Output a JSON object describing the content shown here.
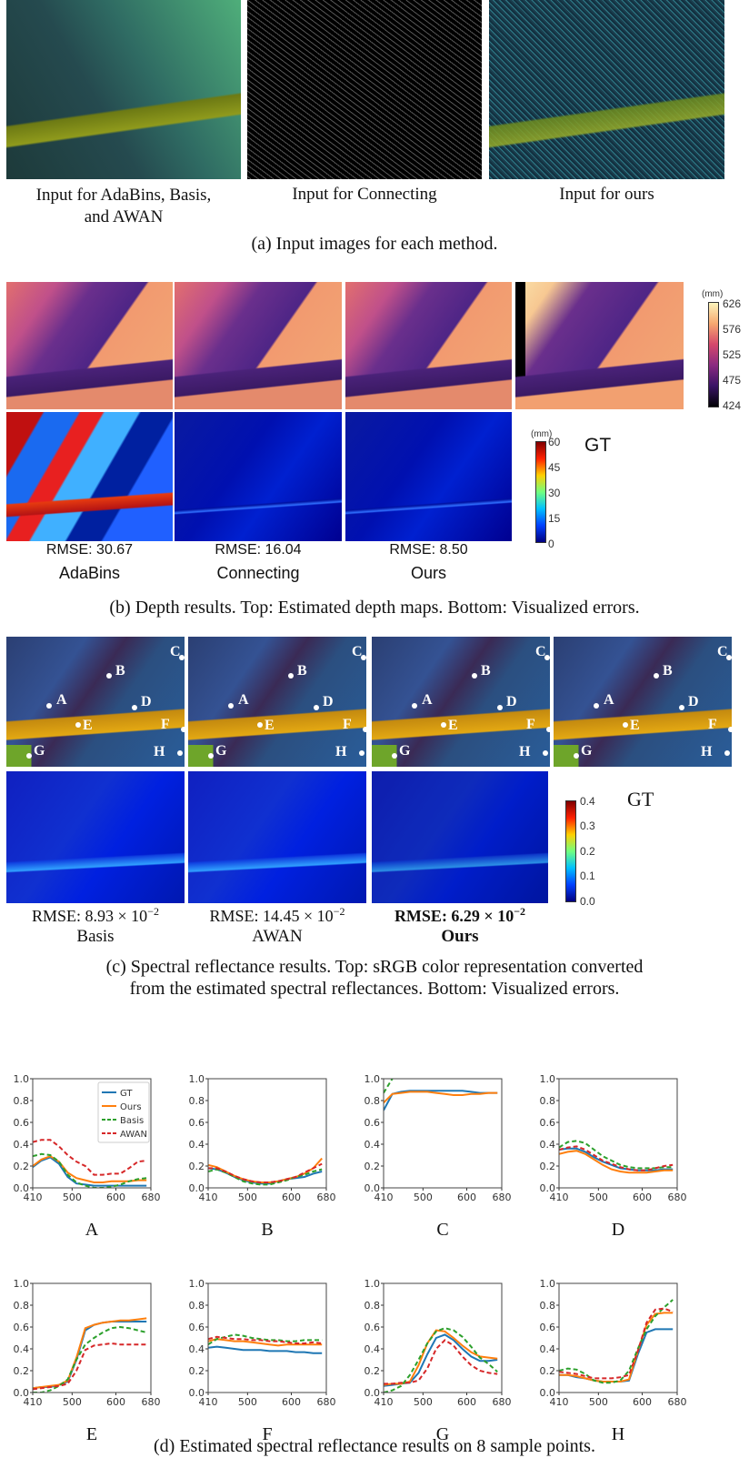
{
  "panel_a": {
    "labels": [
      [
        "Input for AdaBins, Basis,",
        "and AWAN"
      ],
      [
        "Input for Connecting"
      ],
      [
        "Input for ours"
      ]
    ],
    "caption": "(a) Input images for each method."
  },
  "panel_b": {
    "rmse": [
      "RMSE: 30.67",
      "RMSE: 16.04",
      "RMSE: 8.50"
    ],
    "methods": [
      "AdaBins",
      "Connecting",
      "Ours"
    ],
    "gt_label": "GT",
    "depth_colorbar": {
      "unit": "(mm)",
      "ticks": [
        "626",
        "576",
        "525",
        "475",
        "424"
      ],
      "colormap": "magma"
    },
    "error_colorbar": {
      "unit": "(mm)",
      "ticks": [
        "60",
        "45",
        "30",
        "15",
        "0"
      ],
      "colormap": "jet"
    },
    "caption": "(b) Depth results. Top: Estimated depth maps. Bottom: Visualized errors."
  },
  "panel_c": {
    "rmse": [
      {
        "prefix": "RMSE: 8.93 × 10",
        "exp": "−2"
      },
      {
        "prefix": "RMSE: 14.45 × 10",
        "exp": "−2"
      },
      {
        "prefix": "RMSE: 6.29 × 10",
        "exp": "−2"
      }
    ],
    "methods": [
      "Basis",
      "AWAN",
      "Ours"
    ],
    "gt_label": "GT",
    "points": [
      "A",
      "B",
      "C",
      "D",
      "E",
      "F",
      "G",
      "H"
    ],
    "error_colorbar": {
      "ticks": [
        "0.4",
        "0.3",
        "0.2",
        "0.1",
        "0.0"
      ],
      "colormap": "jet"
    },
    "caption": [
      "(c) Spectral reflectance results. Top: sRGB color representation converted",
      "from the estimated spectral reflectances. Bottom: Visualized errors."
    ]
  },
  "panel_d": {
    "caption": "(d) Estimated spectral reflectance results on 8 sample points."
  },
  "chart_data": {
    "type": "line",
    "xlim": [
      410,
      680
    ],
    "ylim": [
      0,
      1
    ],
    "xticks": [
      "410",
      "500",
      "600",
      "680"
    ],
    "yticks": [
      "0.0",
      "0.2",
      "0.4",
      "0.6",
      "0.8",
      "1.0"
    ],
    "legend": {
      "placement": "top-right",
      "entries": [
        "GT",
        "Ours",
        "Basis",
        "AWAN"
      ]
    },
    "series_styles": {
      "GT": {
        "color": "#1f77b4",
        "dash": "solid"
      },
      "Ours": {
        "color": "#ff7f0e",
        "dash": "solid"
      },
      "Basis": {
        "color": "#2ca02c",
        "dash": "dashed"
      },
      "AWAN": {
        "color": "#d62728",
        "dash": "dashed"
      }
    },
    "x": [
      410,
      430,
      450,
      470,
      490,
      510,
      530,
      550,
      570,
      590,
      610,
      630,
      650,
      670
    ],
    "charts": [
      {
        "title": "A",
        "series": {
          "GT": [
            0.19,
            0.25,
            0.28,
            0.22,
            0.1,
            0.04,
            0.03,
            0.02,
            0.02,
            0.02,
            0.02,
            0.02,
            0.02,
            0.02
          ],
          "Ours": [
            0.2,
            0.26,
            0.29,
            0.24,
            0.14,
            0.09,
            0.07,
            0.05,
            0.05,
            0.06,
            0.06,
            0.06,
            0.07,
            0.07
          ],
          "Basis": [
            0.29,
            0.31,
            0.3,
            0.24,
            0.12,
            0.05,
            0.02,
            0.0,
            0.0,
            0.01,
            0.03,
            0.06,
            0.08,
            0.09
          ],
          "AWAN": [
            0.42,
            0.44,
            0.44,
            0.38,
            0.3,
            0.24,
            0.2,
            0.12,
            0.12,
            0.13,
            0.13,
            0.18,
            0.24,
            0.25
          ]
        }
      },
      {
        "title": "B",
        "series": {
          "GT": [
            0.18,
            0.17,
            0.14,
            0.1,
            0.07,
            0.05,
            0.04,
            0.04,
            0.06,
            0.08,
            0.09,
            0.1,
            0.13,
            0.15
          ],
          "Ours": [
            0.21,
            0.19,
            0.15,
            0.11,
            0.08,
            0.06,
            0.05,
            0.05,
            0.06,
            0.08,
            0.1,
            0.13,
            0.18,
            0.27
          ],
          "Basis": [
            0.15,
            0.17,
            0.14,
            0.1,
            0.06,
            0.04,
            0.03,
            0.03,
            0.05,
            0.07,
            0.1,
            0.12,
            0.15,
            0.17
          ],
          "AWAN": [
            0.18,
            0.18,
            0.15,
            0.11,
            0.08,
            0.06,
            0.05,
            0.05,
            0.06,
            0.08,
            0.1,
            0.14,
            0.18,
            0.22
          ]
        }
      },
      {
        "title": "C",
        "series": {
          "GT": [
            0.71,
            0.86,
            0.88,
            0.89,
            0.89,
            0.89,
            0.89,
            0.89,
            0.89,
            0.89,
            0.88,
            0.87,
            0.87,
            0.87
          ],
          "Ours": [
            0.78,
            0.86,
            0.87,
            0.88,
            0.88,
            0.88,
            0.87,
            0.86,
            0.85,
            0.85,
            0.86,
            0.86,
            0.87,
            0.87
          ],
          "Basis": [
            0.87,
            1.0,
            null,
            null,
            null,
            null,
            null,
            null,
            null,
            null,
            null,
            null,
            null,
            null
          ],
          "AWAN": [
            null,
            null,
            null,
            null,
            null,
            null,
            null,
            null,
            null,
            null,
            null,
            null,
            null,
            null
          ]
        }
      },
      {
        "title": "D",
        "series": {
          "GT": [
            0.35,
            0.36,
            0.36,
            0.33,
            0.28,
            0.24,
            0.21,
            0.18,
            0.17,
            0.16,
            0.16,
            0.16,
            0.17,
            0.17
          ],
          "Ours": [
            0.31,
            0.33,
            0.34,
            0.31,
            0.26,
            0.21,
            0.17,
            0.15,
            0.14,
            0.14,
            0.14,
            0.15,
            0.16,
            0.16
          ],
          "Basis": [
            0.37,
            0.42,
            0.43,
            0.41,
            0.35,
            0.29,
            0.25,
            0.21,
            0.19,
            0.18,
            0.18,
            0.18,
            0.19,
            0.19
          ],
          "AWAN": [
            0.35,
            0.37,
            0.38,
            0.35,
            0.3,
            0.25,
            0.22,
            0.19,
            0.17,
            0.16,
            0.16,
            0.18,
            0.2,
            0.21
          ]
        }
      },
      {
        "title": "E",
        "series": {
          "GT": [
            0.04,
            0.05,
            0.05,
            0.07,
            0.1,
            0.3,
            0.57,
            0.62,
            0.64,
            0.65,
            0.65,
            0.65,
            0.65,
            0.65
          ],
          "Ours": [
            0.04,
            0.05,
            0.06,
            0.07,
            0.11,
            0.32,
            0.59,
            0.62,
            0.64,
            0.65,
            0.66,
            0.66,
            0.67,
            0.68
          ],
          "Basis": [
            0.0,
            0.0,
            0.02,
            0.06,
            0.12,
            0.3,
            0.44,
            0.5,
            0.55,
            0.59,
            0.6,
            0.59,
            0.57,
            0.55
          ],
          "AWAN": [
            0.03,
            0.04,
            0.05,
            0.06,
            0.08,
            0.2,
            0.39,
            0.43,
            0.44,
            0.45,
            0.44,
            0.44,
            0.44,
            0.44
          ]
        }
      },
      {
        "title": "F",
        "series": {
          "GT": [
            0.41,
            0.42,
            0.41,
            0.4,
            0.39,
            0.39,
            0.39,
            0.38,
            0.38,
            0.38,
            0.37,
            0.37,
            0.36,
            0.36
          ],
          "Ours": [
            0.47,
            0.49,
            0.48,
            0.47,
            0.47,
            0.46,
            0.45,
            0.44,
            0.43,
            0.44,
            0.44,
            0.44,
            0.44,
            0.44
          ],
          "Basis": [
            0.44,
            0.49,
            0.51,
            0.53,
            0.52,
            0.5,
            0.49,
            0.48,
            0.48,
            0.47,
            0.47,
            0.48,
            0.48,
            0.48
          ],
          "AWAN": [
            0.49,
            0.51,
            0.5,
            0.49,
            0.49,
            0.48,
            0.48,
            0.47,
            0.47,
            0.46,
            0.45,
            0.45,
            0.46,
            0.45
          ]
        }
      },
      {
        "title": "G",
        "series": {
          "GT": [
            0.06,
            0.07,
            0.08,
            0.09,
            0.18,
            0.35,
            0.5,
            0.53,
            0.48,
            0.4,
            0.33,
            0.29,
            0.29,
            0.3
          ],
          "Ours": [
            0.07,
            0.08,
            0.08,
            0.1,
            0.25,
            0.45,
            0.57,
            0.56,
            0.5,
            0.43,
            0.37,
            0.33,
            0.32,
            0.31
          ],
          "Basis": [
            0.0,
            0.02,
            0.06,
            0.16,
            0.3,
            0.45,
            0.56,
            0.59,
            0.57,
            0.51,
            0.42,
            0.32,
            0.26,
            0.19
          ],
          "AWAN": [
            0.08,
            0.08,
            0.09,
            0.09,
            0.11,
            0.22,
            0.4,
            0.48,
            0.43,
            0.33,
            0.25,
            0.2,
            0.18,
            0.17
          ]
        }
      },
      {
        "title": "H",
        "series": {
          "GT": [
            0.16,
            0.16,
            0.14,
            0.13,
            0.11,
            0.1,
            0.1,
            0.1,
            0.11,
            0.35,
            0.55,
            0.58,
            0.58,
            0.58
          ],
          "Ours": [
            0.16,
            0.16,
            0.15,
            0.13,
            0.11,
            0.1,
            0.1,
            0.1,
            0.12,
            0.38,
            0.62,
            0.72,
            0.73,
            0.73
          ],
          "Basis": [
            0.2,
            0.22,
            0.21,
            0.17,
            0.11,
            0.09,
            0.09,
            0.11,
            0.2,
            0.4,
            0.58,
            0.7,
            0.78,
            0.85
          ],
          "AWAN": [
            0.19,
            0.18,
            0.17,
            0.15,
            0.13,
            0.13,
            0.13,
            0.14,
            0.16,
            0.38,
            0.64,
            0.76,
            0.77,
            0.74
          ]
        }
      }
    ]
  }
}
